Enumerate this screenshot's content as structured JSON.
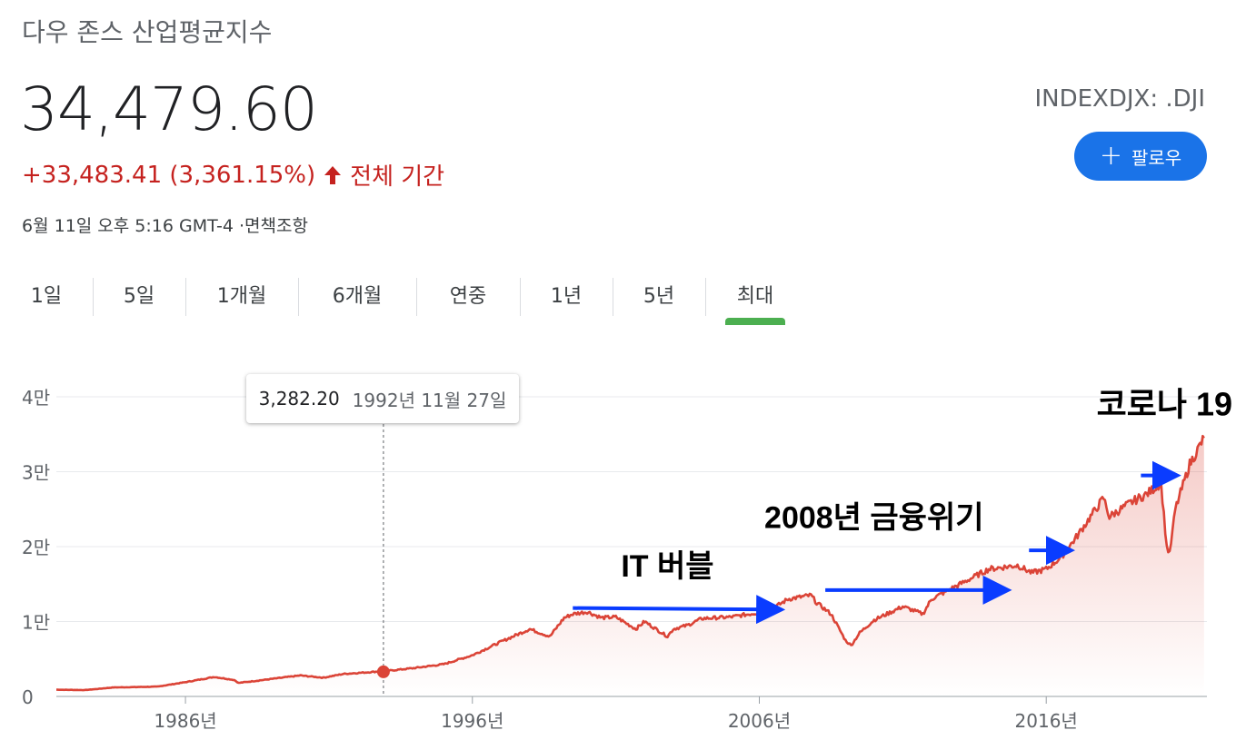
{
  "header": {
    "title": "다우 존스 산업평균지수",
    "price": "34,479.60",
    "change": "+33,483.41 (3,361.15%)",
    "period": "전체 기간",
    "datetime": "6월 11일 오후 5:16 GMT-4 ·면책조항",
    "ticker": "INDEXDJX: .DJI",
    "follow_label": "팔로우"
  },
  "colors": {
    "accent": "#1a73e8",
    "positive": "#c5221f",
    "line": "#db4437",
    "annotation_arrow": "#0a3cff",
    "active_tab": "#4caf50"
  },
  "tabs": [
    {
      "label": "1일",
      "active": false
    },
    {
      "label": "5일",
      "active": false
    },
    {
      "label": "1개월",
      "active": false
    },
    {
      "label": "6개월",
      "active": false
    },
    {
      "label": "연중",
      "active": false
    },
    {
      "label": "1년",
      "active": false
    },
    {
      "label": "5년",
      "active": false
    },
    {
      "label": "최대",
      "active": true
    }
  ],
  "tooltip": {
    "value": "3,282.20",
    "date": "1992년 11월 27일"
  },
  "chart_data": {
    "type": "area",
    "title": "",
    "xlabel": "",
    "ylabel": "",
    "ylim": [
      0,
      40000
    ],
    "xlim": [
      1981.5,
      2021.6
    ],
    "y_ticks": [
      {
        "value": 0,
        "label": "0"
      },
      {
        "value": 10000,
        "label": "1만"
      },
      {
        "value": 20000,
        "label": "2만"
      },
      {
        "value": 30000,
        "label": "3만"
      },
      {
        "value": 40000,
        "label": "4만"
      }
    ],
    "x_ticks": [
      {
        "value": 1986,
        "label": "1986년"
      },
      {
        "value": 1996,
        "label": "1996년"
      },
      {
        "value": 2006,
        "label": "2006년"
      },
      {
        "value": 2016,
        "label": "2016년"
      }
    ],
    "grid": true,
    "highlight": {
      "x": 1992.9,
      "y": 3282.2
    },
    "series": [
      {
        "x": [
          1981.5,
          1982.5,
          1983.5,
          1985,
          1986,
          1987,
          1987.7,
          1987.85,
          1988.5,
          1990,
          1990.8,
          1991.5,
          1993,
          1994,
          1995,
          1996,
          1997,
          1998,
          1998.7,
          1999.2,
          1999.5,
          2000,
          2000.5,
          2001,
          2001.7,
          2002,
          2002.8,
          2003,
          2003.5,
          2004,
          2005,
          2006,
          2006.5,
          2007,
          2007.8,
          2008,
          2008.5,
          2009,
          2009.2,
          2009.5,
          2010,
          2011,
          2011.7,
          2012,
          2013,
          2014,
          2015,
          2015.5,
          2016,
          2016.5,
          2017,
          2018,
          2018.2,
          2019,
          2019.5,
          2020,
          2020.2,
          2020.3,
          2020.5,
          2021,
          2021.5
        ],
        "y": [
          900,
          850,
          1200,
          1300,
          1900,
          2600,
          2200,
          1800,
          2100,
          2800,
          2500,
          3000,
          3400,
          3800,
          4300,
          5500,
          7300,
          9000,
          8000,
          10500,
          11000,
          11300,
          10500,
          10600,
          9000,
          10000,
          8000,
          9000,
          9500,
          10400,
          10600,
          11200,
          11800,
          13000,
          13500,
          12500,
          11000,
          7500,
          6800,
          8500,
          10200,
          12000,
          11000,
          13000,
          15000,
          17000,
          17500,
          16500,
          17000,
          18500,
          21000,
          26500,
          24000,
          26000,
          27000,
          28500,
          20000,
          19000,
          25000,
          31000,
          34500
        ]
      }
    ]
  },
  "annotations": [
    {
      "text": "IT 버블",
      "x": 2002.8,
      "y": 16000
    },
    {
      "text": "2008년 금융위기",
      "x": 2010,
      "y": 22500
    },
    {
      "text": "코로나 19",
      "x": 2019.5,
      "y": 37500
    }
  ]
}
